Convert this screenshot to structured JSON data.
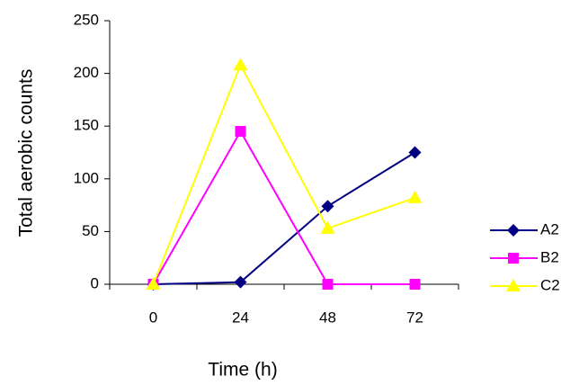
{
  "chart_data": {
    "type": "line",
    "x_label": "Time (h)",
    "y_label": "Total aerobic counts",
    "categories": [
      "0",
      "24",
      "48",
      "72"
    ],
    "series": [
      {
        "name": "A2",
        "color": "#000080",
        "marker": "diamond",
        "values": [
          0,
          2,
          74,
          125
        ]
      },
      {
        "name": "B2",
        "color": "#ff00ff",
        "marker": "square",
        "values": [
          0,
          145,
          0,
          0
        ]
      },
      {
        "name": "C2",
        "color": "#ffff00",
        "marker": "triangle",
        "values": [
          0,
          208,
          53,
          82
        ]
      }
    ],
    "ylim": [
      0,
      250
    ],
    "yticks": [
      0,
      50,
      100,
      150,
      200,
      250
    ],
    "grid": false,
    "legend": "right"
  }
}
